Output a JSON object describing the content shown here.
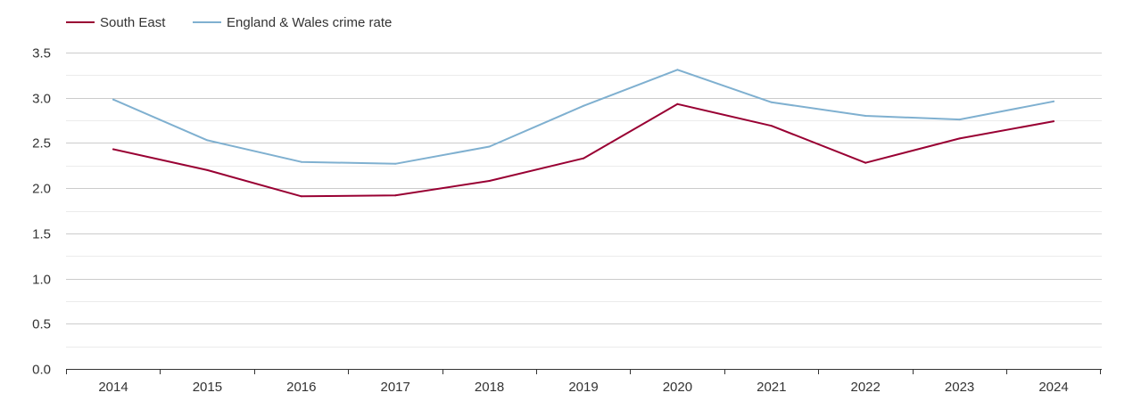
{
  "chart_data": {
    "type": "line",
    "title": "",
    "xlabel": "",
    "ylabel": "",
    "x": [
      "2014",
      "2015",
      "2016",
      "2017",
      "2018",
      "2019",
      "2020",
      "2021",
      "2022",
      "2023",
      "2024"
    ],
    "ylim": [
      0,
      3.5
    ],
    "yticks": [
      "0.0",
      "0.5",
      "1.0",
      "1.5",
      "2.0",
      "2.5",
      "3.0",
      "3.5"
    ],
    "grid": true,
    "legend_position": "top-left",
    "series": [
      {
        "name": "South East",
        "color": "#990033",
        "values": [
          2.43,
          2.2,
          1.91,
          1.92,
          2.08,
          2.33,
          2.93,
          2.69,
          2.28,
          2.55,
          2.74
        ]
      },
      {
        "name": "England & Wales crime rate",
        "color": "#7fb0d0",
        "values": [
          2.98,
          2.53,
          2.29,
          2.27,
          2.46,
          2.91,
          3.31,
          2.95,
          2.8,
          2.76,
          2.96
        ]
      }
    ]
  }
}
